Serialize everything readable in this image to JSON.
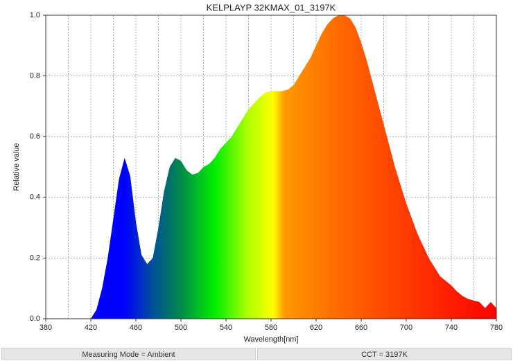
{
  "chart_data": {
    "type": "area",
    "title": "KELPLAYP 32KMAX_01_3197K",
    "x_label": "Wavelength[nm]",
    "y_label": "Relative value",
    "x": [
      420,
      425,
      430,
      435,
      440,
      445,
      450,
      455,
      460,
      465,
      470,
      475,
      480,
      485,
      490,
      495,
      500,
      505,
      510,
      515,
      520,
      525,
      530,
      535,
      540,
      545,
      550,
      555,
      560,
      565,
      570,
      575,
      580,
      585,
      590,
      595,
      600,
      605,
      610,
      615,
      620,
      625,
      630,
      635,
      640,
      645,
      650,
      655,
      660,
      665,
      670,
      675,
      680,
      685,
      690,
      695,
      700,
      705,
      710,
      715,
      720,
      725,
      730,
      735,
      740,
      745,
      750,
      755,
      760,
      765,
      770,
      775,
      780
    ],
    "values": [
      0,
      0.03,
      0.1,
      0.2,
      0.33,
      0.46,
      0.53,
      0.47,
      0.32,
      0.21,
      0.18,
      0.2,
      0.3,
      0.42,
      0.5,
      0.53,
      0.52,
      0.49,
      0.475,
      0.48,
      0.5,
      0.51,
      0.53,
      0.56,
      0.58,
      0.6,
      0.63,
      0.66,
      0.69,
      0.71,
      0.73,
      0.745,
      0.75,
      0.75,
      0.75,
      0.755,
      0.77,
      0.8,
      0.83,
      0.86,
      0.9,
      0.94,
      0.97,
      0.99,
      1.0,
      1.0,
      0.99,
      0.96,
      0.91,
      0.85,
      0.78,
      0.71,
      0.64,
      0.57,
      0.5,
      0.44,
      0.38,
      0.33,
      0.28,
      0.24,
      0.2,
      0.17,
      0.14,
      0.125,
      0.11,
      0.09,
      0.075,
      0.065,
      0.06,
      0.055,
      0.035,
      0.055,
      0.035
    ],
    "color_stops": [
      {
        "wavelength": 420,
        "color": "#0000ff"
      },
      {
        "wavelength": 450,
        "color": "#0000ff"
      },
      {
        "wavelength": 475,
        "color": "#00509a"
      },
      {
        "wavelength": 500,
        "color": "#008a4a"
      },
      {
        "wavelength": 530,
        "color": "#00ee00"
      },
      {
        "wavelength": 560,
        "color": "#b0ff00"
      },
      {
        "wavelength": 582,
        "color": "#ffff00"
      },
      {
        "wavelength": 592,
        "color": "#ff9800"
      },
      {
        "wavelength": 640,
        "color": "#ff6a00"
      },
      {
        "wavelength": 700,
        "color": "#ff3a00"
      },
      {
        "wavelength": 780,
        "color": "#ff0000"
      }
    ],
    "xlim": [
      380,
      780
    ],
    "ylim": [
      0,
      1
    ],
    "xticks": [
      380,
      420,
      460,
      500,
      540,
      580,
      620,
      660,
      700,
      740,
      780
    ],
    "x_minor_grid": [
      400,
      440,
      480,
      520,
      560,
      600,
      640,
      680,
      720,
      760
    ],
    "yticks": [
      {
        "value": 0,
        "label": "0.0"
      },
      0.2,
      0.4,
      0.6,
      0.8,
      {
        "value": 1,
        "label": "1.0"
      }
    ],
    "grid": true
  },
  "footer": {
    "measuring_mode": "Measuring Mode = Ambient",
    "cct": "CCT = 3197K"
  }
}
